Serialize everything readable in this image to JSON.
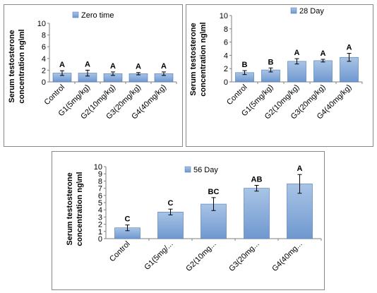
{
  "colors": {
    "bar_top": "#a9c4e6",
    "bar_bottom": "#6f98cf",
    "bar_stroke": "#4a77b4",
    "axis": "#7f7f7f",
    "frame": "#888888"
  },
  "chart_data": [
    {
      "type": "bar",
      "legend": "Zero time",
      "legend_position": "top-right",
      "ylabel": [
        "Serum testosterone",
        "concentration ng\\ml"
      ],
      "ylim": [
        0,
        10
      ],
      "yticks": [
        "0",
        "2",
        "4",
        "6",
        "8",
        "10"
      ],
      "categories": [
        "Control",
        "G1(5mg/kg)",
        "G2(10mg/kg)",
        "G3(20mg/kg)",
        "G4(40mg/kg)"
      ],
      "values": [
        1.5,
        1.5,
        1.4,
        1.4,
        1.4
      ],
      "errors": [
        0.4,
        0.5,
        0.3,
        0.2,
        0.3
      ],
      "letters": [
        "A",
        "A",
        "A",
        "A",
        "A"
      ],
      "grid": false
    },
    {
      "type": "bar",
      "legend": "28 Day",
      "legend_position": "top-right",
      "ylabel": [
        "Serum testosterone",
        "concentration ng\\ml"
      ],
      "ylim": [
        0,
        10
      ],
      "yticks": [
        "0",
        "2",
        "4",
        "6",
        "8",
        "10"
      ],
      "categories": [
        "Control",
        "G1(5mg/kg)",
        "G2(10mg/kg)",
        "G3(20mg/kg)",
        "G4(40mg/kg)"
      ],
      "values": [
        1.4,
        1.8,
        3.1,
        3.2,
        3.7
      ],
      "errors": [
        0.3,
        0.3,
        0.4,
        0.2,
        0.6
      ],
      "letters": [
        "B",
        "B",
        "A",
        "A",
        "A"
      ],
      "grid": false
    },
    {
      "type": "bar",
      "legend": "56 Day",
      "legend_position": "top-left",
      "ylabel": [
        "Serum testosterone",
        "concentration ng\\ml"
      ],
      "ylim": [
        0,
        10
      ],
      "yticks": [
        "0",
        "1",
        "2",
        "3",
        "4",
        "5",
        "6",
        "7",
        "8",
        "9",
        "10"
      ],
      "categories": [
        "Control",
        "G1(5mg/...",
        "G2(10mg...",
        "G3(20mg...",
        "G4(40mg..."
      ],
      "values": [
        1.5,
        3.7,
        4.8,
        7.0,
        7.6
      ],
      "errors": [
        0.4,
        0.4,
        0.9,
        0.4,
        1.3
      ],
      "letters": [
        "C",
        "C",
        "BC",
        "AB",
        "A"
      ],
      "grid": false
    }
  ]
}
